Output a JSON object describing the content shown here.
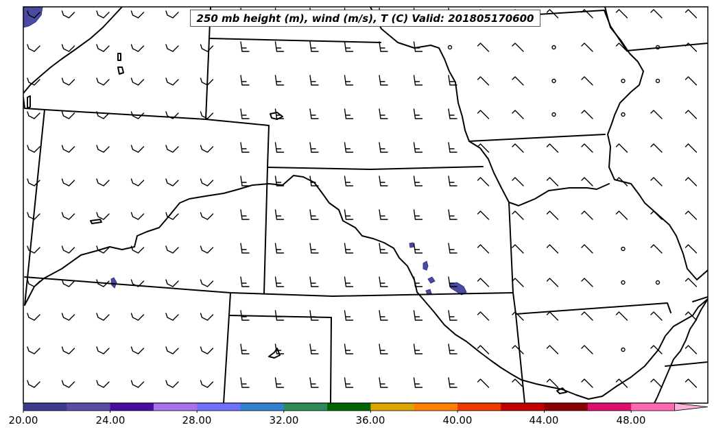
{
  "title": "250 mb height (m), wind (m/s), T (C) Valid: 201805170600",
  "colorbar": {
    "tick_labels": [
      "20.00",
      "24.00",
      "28.00",
      "32.00",
      "36.00",
      "40.00",
      "44.00",
      "48.00"
    ],
    "colors": [
      "#3b3b8f",
      "#5b4ea0",
      "#4b0aa0",
      "#a970e8",
      "#7070ff",
      "#3080d0",
      "#2e8b57",
      "#006400",
      "#daa500",
      "#ff8000",
      "#ee3a00",
      "#c00000",
      "#8b0000",
      "#dd1070",
      "#ff69b4",
      "#ffb0d8"
    ]
  },
  "colors": {
    "fill_blob": "#4a4aa0",
    "line": "#000000"
  }
}
